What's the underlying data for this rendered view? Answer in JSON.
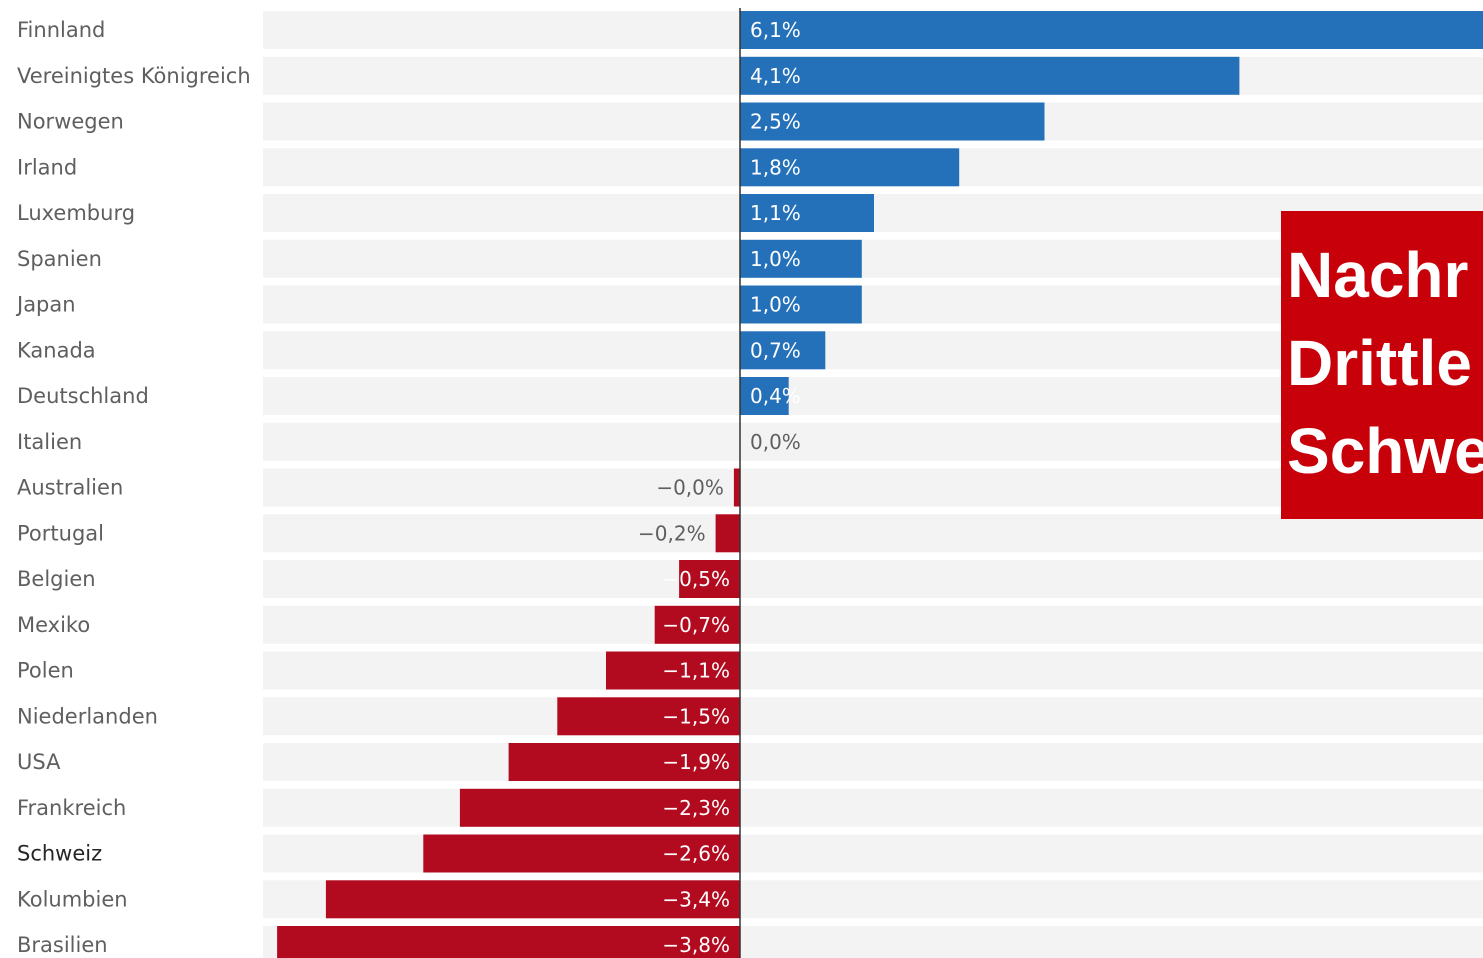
{
  "chart_data": {
    "type": "bar",
    "orientation": "horizontal",
    "categories": [
      "Finnland",
      "Vereinigtes Königreich",
      "Norwegen",
      "Irland",
      "Luxemburg",
      "Spanien",
      "Japan",
      "Kanada",
      "Deutschland",
      "Italien",
      "Australien",
      "Portugal",
      "Belgien",
      "Mexiko",
      "Polen",
      "Niederlanden",
      "USA",
      "Frankreich",
      "Schweiz",
      "Kolumbien",
      "Brasilien"
    ],
    "values": [
      6.1,
      4.1,
      2.5,
      1.8,
      1.1,
      1.0,
      1.0,
      0.7,
      0.4,
      0.0,
      -0.05,
      -0.2,
      -0.5,
      -0.7,
      -1.1,
      -1.5,
      -1.9,
      -2.3,
      -2.6,
      -3.4,
      -3.8
    ],
    "value_labels": [
      "6,1%",
      "4,1%",
      "2,5%",
      "1,8%",
      "1,1%",
      "1,0%",
      "1,0%",
      "0,7%",
      "0,4%",
      "0,0%",
      "−0,0%",
      "−0,2%",
      "−0,5%",
      "−0,7%",
      "−1,1%",
      "−1,5%",
      "−1,9%",
      "−2,3%",
      "−2,6%",
      "−3,4%",
      "−3,8%"
    ],
    "highlighted_category": "Schweiz",
    "xlim": [
      -3.8,
      6.1
    ],
    "colors": {
      "positive": "#2471ba",
      "negative": "#b20b1f",
      "row_background": "#f3f3f3",
      "zero_line": "#333333",
      "label_text": "#5f5f5f",
      "highlight_text": "#262626"
    },
    "title": "",
    "xlabel": "",
    "ylabel": ""
  },
  "overlay": {
    "lines": [
      "Nachr",
      "Drittle",
      "Schwe"
    ],
    "color": "#c8000a"
  }
}
